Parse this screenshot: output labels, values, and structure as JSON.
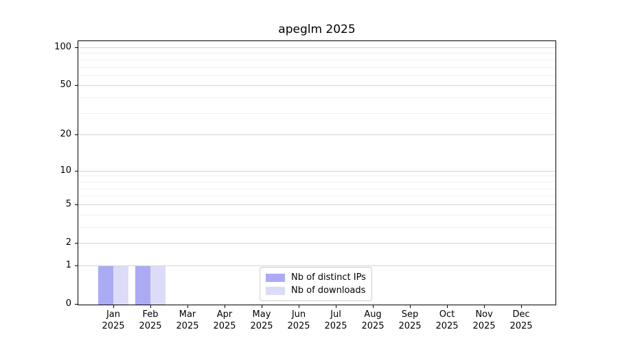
{
  "chart_data": {
    "type": "bar",
    "title": "apeglm 2025",
    "categories": [
      {
        "month": "Jan",
        "year": "2025"
      },
      {
        "month": "Feb",
        "year": "2025"
      },
      {
        "month": "Mar",
        "year": "2025"
      },
      {
        "month": "Apr",
        "year": "2025"
      },
      {
        "month": "May",
        "year": "2025"
      },
      {
        "month": "Jun",
        "year": "2025"
      },
      {
        "month": "Jul",
        "year": "2025"
      },
      {
        "month": "Aug",
        "year": "2025"
      },
      {
        "month": "Sep",
        "year": "2025"
      },
      {
        "month": "Oct",
        "year": "2025"
      },
      {
        "month": "Nov",
        "year": "2025"
      },
      {
        "month": "Dec",
        "year": "2025"
      }
    ],
    "series": [
      {
        "name": "Nb of distinct IPs",
        "color": "#aaaaf5",
        "values": [
          1,
          1,
          0,
          0,
          0,
          0,
          0,
          0,
          0,
          0,
          0,
          0
        ]
      },
      {
        "name": "Nb of downloads",
        "color": "#dcdcf8",
        "values": [
          1,
          1,
          0,
          0,
          0,
          0,
          0,
          0,
          0,
          0,
          0,
          0
        ]
      }
    ],
    "xlabel": "",
    "ylabel": "",
    "yscale": "log1p",
    "ylim": [
      0,
      100
    ],
    "y_major_ticks": [
      0,
      1,
      2,
      5,
      10,
      20,
      50,
      100
    ],
    "y_minor_gridlines": [
      3,
      4,
      6,
      7,
      8,
      9,
      30,
      40,
      60,
      70,
      80,
      90
    ],
    "grid": "horizontal",
    "legend_position": "lower center inside plot",
    "colors": {
      "grid_major": "#d4d4d4",
      "grid_minor": "#efefef",
      "spine": "#000000",
      "background": "#ffffff",
      "text": "#000000"
    }
  }
}
